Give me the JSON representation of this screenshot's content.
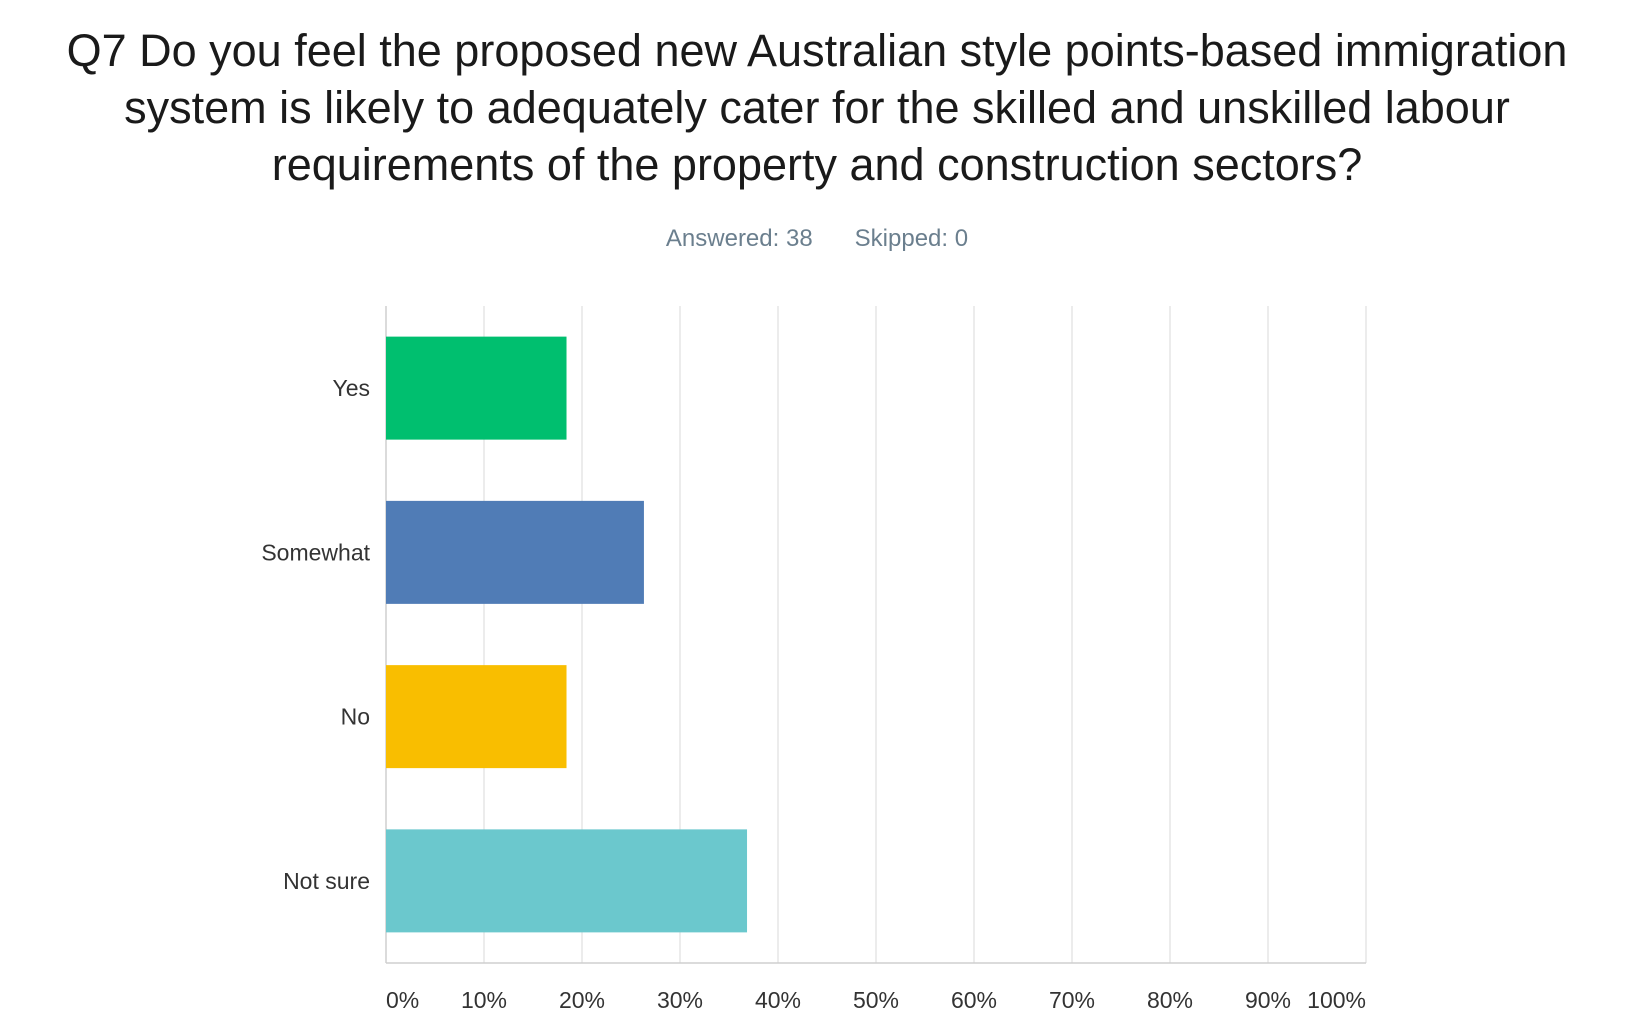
{
  "title": "Q7 Do you feel the proposed new Australian style points-based immigration system is likely to adequately cater for the skilled and unskilled labour requirements of the property and construction sectors?",
  "summary": {
    "answered_label": "Answered: 38",
    "skipped_label": "Skipped: 0"
  },
  "chart_data": {
    "type": "bar",
    "orientation": "horizontal",
    "title": "Q7 Do you feel the proposed new Australian style points-based immigration system is likely to adequately cater for the skilled and unskilled labour requirements of the property and construction sectors?",
    "categories": [
      "Yes",
      "Somewhat",
      "No",
      "Not sure"
    ],
    "values": [
      18.42,
      26.32,
      18.42,
      36.84
    ],
    "colors": [
      "#00bf6f",
      "#507cb6",
      "#f9be00",
      "#6bc8cd"
    ],
    "value_unit": "percent",
    "xlim": [
      0,
      100
    ],
    "x_ticks": [
      "0%",
      "10%",
      "20%",
      "30%",
      "40%",
      "50%",
      "60%",
      "70%",
      "80%",
      "90%",
      "100%"
    ],
    "xlabel": "",
    "ylabel": "",
    "grid": "vertical",
    "legend": "none"
  }
}
